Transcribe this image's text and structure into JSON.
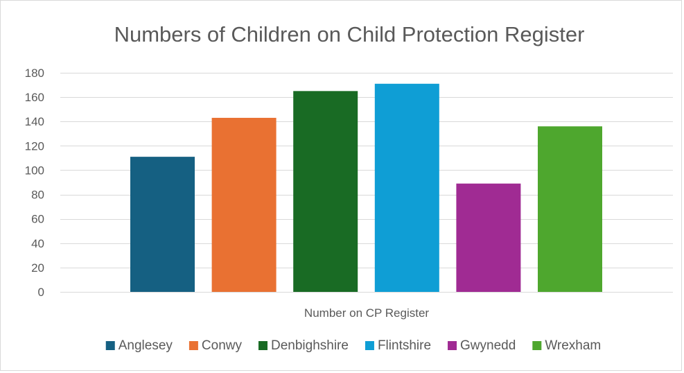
{
  "chart_data": {
    "type": "bar",
    "title": "Numbers of Children on Child Protection Register",
    "xlabel": "Number on CP Register",
    "ylabel": "",
    "categories": [
      "Number on CP Register"
    ],
    "ylim": [
      0,
      180
    ],
    "yticks": [
      0,
      20,
      40,
      60,
      80,
      100,
      120,
      140,
      160,
      180
    ],
    "grid": true,
    "legend_position": "bottom",
    "series": [
      {
        "name": "Anglesey",
        "values": [
          111
        ],
        "color": "#156082"
      },
      {
        "name": "Conwy",
        "values": [
          143
        ],
        "color": "#E97132"
      },
      {
        "name": "Denbighshire",
        "values": [
          165
        ],
        "color": "#196B24"
      },
      {
        "name": "Flintshire",
        "values": [
          171
        ],
        "color": "#0F9ED5"
      },
      {
        "name": "Gwynedd",
        "values": [
          89
        ],
        "color": "#A02B93"
      },
      {
        "name": "Wrexham",
        "values": [
          136
        ],
        "color": "#4EA72E"
      }
    ]
  }
}
